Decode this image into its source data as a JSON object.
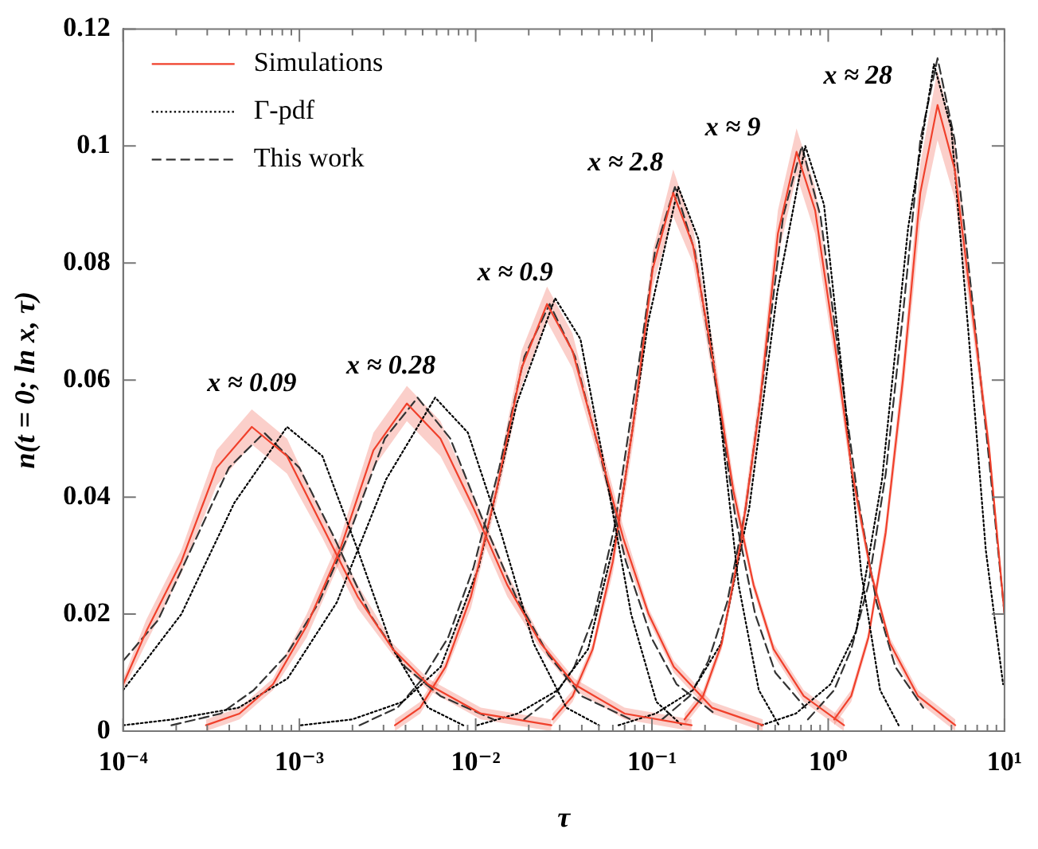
{
  "chart_data": {
    "type": "line",
    "xlabel": "τ",
    "ylabel": "n(t = 0; ln x, τ)",
    "log": "x",
    "xlim": [
      0.0001,
      10
    ],
    "ylim": [
      0,
      0.12
    ],
    "xticks": [
      {
        "value": 0.0001,
        "label": "10⁻⁴"
      },
      {
        "value": 0.0002,
        "label": null
      },
      {
        "value": 0.0003,
        "label": null
      },
      {
        "value": 0.0004,
        "label": null
      },
      {
        "value": 0.0005,
        "label": null
      },
      {
        "value": 0.0006,
        "label": null
      },
      {
        "value": 0.0007,
        "label": null
      },
      {
        "value": 0.0008,
        "label": null
      },
      {
        "value": 0.0009,
        "label": null
      },
      {
        "value": 0.001,
        "label": "10⁻³"
      },
      {
        "value": 0.002,
        "label": null
      },
      {
        "value": 0.003,
        "label": null
      },
      {
        "value": 0.004,
        "label": null
      },
      {
        "value": 0.005,
        "label": null
      },
      {
        "value": 0.006,
        "label": null
      },
      {
        "value": 0.007,
        "label": null
      },
      {
        "value": 0.008,
        "label": null
      },
      {
        "value": 0.009,
        "label": null
      },
      {
        "value": 0.01,
        "label": "10⁻²"
      },
      {
        "value": 0.02,
        "label": null
      },
      {
        "value": 0.03,
        "label": null
      },
      {
        "value": 0.04,
        "label": null
      },
      {
        "value": 0.05,
        "label": null
      },
      {
        "value": 0.06,
        "label": null
      },
      {
        "value": 0.07,
        "label": null
      },
      {
        "value": 0.08,
        "label": null
      },
      {
        "value": 0.09,
        "label": null
      },
      {
        "value": 0.1,
        "label": "10⁻¹"
      },
      {
        "value": 0.2,
        "label": null
      },
      {
        "value": 0.3,
        "label": null
      },
      {
        "value": 0.4,
        "label": null
      },
      {
        "value": 0.5,
        "label": null
      },
      {
        "value": 0.6,
        "label": null
      },
      {
        "value": 0.7,
        "label": null
      },
      {
        "value": 0.8,
        "label": null
      },
      {
        "value": 0.9,
        "label": null
      },
      {
        "value": 1,
        "label": "10⁰"
      },
      {
        "value": 2,
        "label": null
      },
      {
        "value": 3,
        "label": null
      },
      {
        "value": 4,
        "label": null
      },
      {
        "value": 5,
        "label": null
      },
      {
        "value": 6,
        "label": null
      },
      {
        "value": 7,
        "label": null
      },
      {
        "value": 8,
        "label": null
      },
      {
        "value": 9,
        "label": null
      },
      {
        "value": 10,
        "label": "10¹"
      }
    ],
    "yticks": [
      0,
      0.02,
      0.04,
      0.06,
      0.08,
      0.1,
      0.12
    ],
    "grid": false,
    "legend": "top left",
    "marker": "none",
    "series": [
      {
        "name": "Simulations",
        "color": "#f0402b",
        "line_style": "solid",
        "x": [
          0.0001,
          0.000135,
          0.000214,
          0.000339,
          0.000537,
          0.000851,
          0.00135,
          0.00214,
          0.00339,
          0.00537,
          0.0107,
          0.0269
        ],
        "values": [
          0.008,
          0.017,
          0.029,
          0.045,
          0.052,
          0.047,
          0.035,
          0.023,
          0.014,
          0.008,
          0.003,
          0.001
        ],
        "lower": [
          0.007,
          0.015,
          0.027,
          0.042,
          0.049,
          0.044,
          0.033,
          0.021,
          0.013,
          0.007,
          0.002,
          0
        ],
        "upper": [
          0.009,
          0.019,
          0.031,
          0.048,
          0.055,
          0.05,
          0.037,
          0.025,
          0.015,
          0.009,
          0.004,
          0.002
        ]
      },
      {
        "name": "Γ-pdf",
        "color": "#000000",
        "line_style": "dotted",
        "x": [
          0.0001,
          0.000214,
          0.000427,
          0.000851,
          0.00135,
          0.00214,
          0.00339,
          0.00537,
          0.00851
        ],
        "values": [
          0.007,
          0.02,
          0.039,
          0.052,
          0.047,
          0.031,
          0.014,
          0.004,
          0.001
        ]
      },
      {
        "name": "This work",
        "color": "#333333",
        "line_style": "dashed",
        "x": [
          0.0001,
          0.000158,
          0.000251,
          0.000398,
          0.000631,
          0.001,
          0.00158,
          0.00251,
          0.00398,
          0.00631,
          0.0126
        ],
        "values": [
          0.012,
          0.019,
          0.032,
          0.045,
          0.051,
          0.045,
          0.033,
          0.02,
          0.011,
          0.006,
          0.002
        ]
      },
      {
        "color": "#f0402b",
        "line_style": "solid",
        "x": [
          0.000295,
          0.000457,
          0.000708,
          0.0011,
          0.0017,
          0.00263,
          0.00407,
          0.00631,
          0.00977,
          0.0151,
          0.0234,
          0.0363,
          0.07,
          0.168
        ],
        "values": [
          0.001,
          0.003,
          0.008,
          0.018,
          0.031,
          0.048,
          0.056,
          0.05,
          0.038,
          0.025,
          0.015,
          0.008,
          0.003,
          0.001
        ],
        "lower": [
          0,
          0.002,
          0.007,
          0.016,
          0.029,
          0.045,
          0.053,
          0.047,
          0.036,
          0.023,
          0.014,
          0.007,
          0.002,
          0
        ],
        "upper": [
          0.002,
          0.004,
          0.009,
          0.02,
          0.033,
          0.051,
          0.059,
          0.053,
          0.04,
          0.027,
          0.016,
          0.009,
          0.004,
          0.002
        ]
      },
      {
        "color": "#000000",
        "line_style": "dotted",
        "x": [
          0.0001,
          0.000191,
          0.000451,
          0.000857,
          0.00163,
          0.0031,
          0.00589,
          0.00904,
          0.0139,
          0.0213,
          0.0327,
          0.0501
        ],
        "values": [
          0.001,
          0.002,
          0.004,
          0.009,
          0.022,
          0.043,
          0.057,
          0.051,
          0.034,
          0.015,
          0.004,
          0.001
        ]
      },
      {
        "color": "#333333",
        "line_style": "dashed",
        "x": [
          0.000188,
          0.000358,
          0.00055,
          0.000843,
          0.00129,
          0.00199,
          0.00305,
          0.00468,
          0.00718,
          0.011,
          0.0169,
          0.0259,
          0.0398,
          0.0757
        ],
        "values": [
          0.001,
          0.003,
          0.007,
          0.013,
          0.022,
          0.035,
          0.05,
          0.057,
          0.05,
          0.036,
          0.023,
          0.013,
          0.006,
          0.002
        ]
      },
      {
        "color": "#f0402b",
        "line_style": "solid",
        "x": [
          0.00348,
          0.00484,
          0.00675,
          0.0094,
          0.0131,
          0.0182,
          0.0254,
          0.0354,
          0.0493,
          0.0687,
          0.0957,
          0.133,
          0.219,
          0.426
        ],
        "values": [
          0.001,
          0.004,
          0.011,
          0.023,
          0.041,
          0.062,
          0.073,
          0.065,
          0.049,
          0.033,
          0.02,
          0.011,
          0.004,
          0.001
        ],
        "lower": [
          0,
          0.003,
          0.01,
          0.021,
          0.039,
          0.059,
          0.07,
          0.062,
          0.047,
          0.031,
          0.019,
          0.01,
          0.003,
          0
        ],
        "upper": [
          0.002,
          0.005,
          0.012,
          0.025,
          0.043,
          0.065,
          0.076,
          0.068,
          0.051,
          0.035,
          0.021,
          0.012,
          0.005,
          0.002
        ]
      },
      {
        "color": "#000000",
        "line_style": "dotted",
        "x": [
          0.00102,
          0.00199,
          0.00385,
          0.00634,
          0.0104,
          0.0171,
          0.0282,
          0.0393,
          0.0547,
          0.0762,
          0.106,
          0.148
        ],
        "values": [
          0.001,
          0.002,
          0.005,
          0.011,
          0.028,
          0.056,
          0.074,
          0.067,
          0.044,
          0.02,
          0.005,
          0.001
        ]
      },
      {
        "color": "#333333",
        "line_style": "dashed",
        "x": [
          0.00219,
          0.0036,
          0.00501,
          0.00698,
          0.00973,
          0.0136,
          0.0189,
          0.0263,
          0.0366,
          0.0511,
          0.0711,
          0.0991,
          0.138,
          0.227
        ],
        "values": [
          0.001,
          0.004,
          0.009,
          0.016,
          0.028,
          0.045,
          0.064,
          0.073,
          0.064,
          0.047,
          0.029,
          0.016,
          0.008,
          0.003
        ]
      },
      {
        "color": "#f0402b",
        "line_style": "solid",
        "x": [
          0.0273,
          0.0355,
          0.0461,
          0.06,
          0.078,
          0.101,
          0.132,
          0.171,
          0.223,
          0.29,
          0.377,
          0.49,
          0.726,
          1.23
        ],
        "values": [
          0.002,
          0.006,
          0.014,
          0.029,
          0.052,
          0.079,
          0.092,
          0.083,
          0.063,
          0.041,
          0.025,
          0.014,
          0.006,
          0.001
        ],
        "lower": [
          0.001,
          0.005,
          0.013,
          0.027,
          0.049,
          0.076,
          0.088,
          0.08,
          0.06,
          0.039,
          0.024,
          0.013,
          0.005,
          0
        ],
        "upper": [
          0.003,
          0.007,
          0.015,
          0.031,
          0.055,
          0.082,
          0.096,
          0.086,
          0.066,
          0.043,
          0.026,
          0.015,
          0.007,
          0.002
        ]
      },
      {
        "color": "#000000",
        "line_style": "dotted",
        "x": [
          0.0102,
          0.0173,
          0.0292,
          0.0434,
          0.0643,
          0.0953,
          0.141,
          0.184,
          0.239,
          0.31,
          0.404,
          0.525
        ],
        "values": [
          0.001,
          0.003,
          0.007,
          0.014,
          0.035,
          0.07,
          0.093,
          0.084,
          0.056,
          0.025,
          0.007,
          0.001
        ]
      },
      {
        "color": "#333333",
        "line_style": "dashed",
        "x": [
          0.0188,
          0.0279,
          0.0363,
          0.0472,
          0.0614,
          0.0798,
          0.104,
          0.135,
          0.175,
          0.228,
          0.296,
          0.385,
          0.501,
          0.743
        ],
        "values": [
          0.002,
          0.006,
          0.011,
          0.02,
          0.035,
          0.058,
          0.082,
          0.093,
          0.082,
          0.06,
          0.037,
          0.02,
          0.01,
          0.004
        ]
      },
      {
        "color": "#f0402b",
        "line_style": "solid",
        "x": [
          0.153,
          0.195,
          0.249,
          0.318,
          0.406,
          0.518,
          0.661,
          0.843,
          1.08,
          1.37,
          1.75,
          2.24,
          3.23,
          5.26
        ],
        "values": [
          0.002,
          0.006,
          0.015,
          0.032,
          0.055,
          0.085,
          0.099,
          0.089,
          0.067,
          0.044,
          0.027,
          0.015,
          0.006,
          0.001
        ],
        "lower": [
          0.001,
          0.005,
          0.014,
          0.03,
          0.052,
          0.081,
          0.095,
          0.085,
          0.064,
          0.042,
          0.026,
          0.014,
          0.005,
          0
        ],
        "upper": [
          0.003,
          0.007,
          0.016,
          0.034,
          0.058,
          0.089,
          0.103,
          0.093,
          0.07,
          0.046,
          0.028,
          0.016,
          0.007,
          0.002
        ]
      },
      {
        "color": "#000000",
        "line_style": "dotted",
        "x": [
          0.0646,
          0.105,
          0.171,
          0.247,
          0.356,
          0.514,
          0.741,
          0.946,
          1.21,
          1.54,
          1.97,
          2.51
        ],
        "values": [
          0.001,
          0.003,
          0.007,
          0.015,
          0.038,
          0.075,
          0.1,
          0.09,
          0.06,
          0.027,
          0.007,
          0.001
        ]
      },
      {
        "color": "#333333",
        "line_style": "dashed",
        "x": [
          0.114,
          0.164,
          0.209,
          0.267,
          0.34,
          0.435,
          0.555,
          0.708,
          0.904,
          1.15,
          1.47,
          1.88,
          2.4,
          3.46
        ],
        "values": [
          0.002,
          0.006,
          0.012,
          0.022,
          0.038,
          0.062,
          0.088,
          0.1,
          0.088,
          0.064,
          0.04,
          0.022,
          0.011,
          0.004
        ]
      },
      {
        "color": "#f0402b",
        "line_style": "solid",
        "x": [
          1.08,
          1.35,
          1.69,
          2.12,
          2.65,
          3.33,
          4.17,
          5.22,
          6.55,
          8.2,
          10
        ],
        "values": [
          0.002,
          0.006,
          0.016,
          0.034,
          0.06,
          0.092,
          0.107,
          0.096,
          0.072,
          0.048,
          0.02
        ],
        "lower": [
          0.001,
          0.005,
          0.015,
          0.032,
          0.057,
          0.087,
          0.101,
          0.091,
          0.069,
          0.046,
          0.019
        ],
        "upper": [
          0.003,
          0.007,
          0.017,
          0.036,
          0.063,
          0.097,
          0.113,
          0.101,
          0.075,
          0.05,
          0.021
        ]
      },
      {
        "color": "#000000",
        "line_style": "dotted",
        "x": [
          0.417,
          0.655,
          1.03,
          1.44,
          2.02,
          2.84,
          3.98,
          4.99,
          6.25,
          7.83,
          9.82
        ],
        "values": [
          0.001,
          0.003,
          0.008,
          0.017,
          0.043,
          0.086,
          0.114,
          0.103,
          0.068,
          0.031,
          0.008
        ]
      },
      {
        "color": "#333333",
        "line_style": "dashed",
        "x": [
          0.767,
          1.08,
          1.35,
          1.69,
          2.12,
          2.65,
          3.33,
          4.17,
          5.22,
          6.55,
          8.2,
          10
        ],
        "values": [
          0.002,
          0.007,
          0.014,
          0.025,
          0.044,
          0.071,
          0.101,
          0.115,
          0.101,
          0.074,
          0.046,
          0.02
        ]
      }
    ],
    "annotations": [
      "x ≈ 0.09",
      "x ≈ 0.28",
      "x ≈ 0.9",
      "x ≈ 2.8",
      "x ≈ 9",
      "x ≈ 28"
    ]
  }
}
